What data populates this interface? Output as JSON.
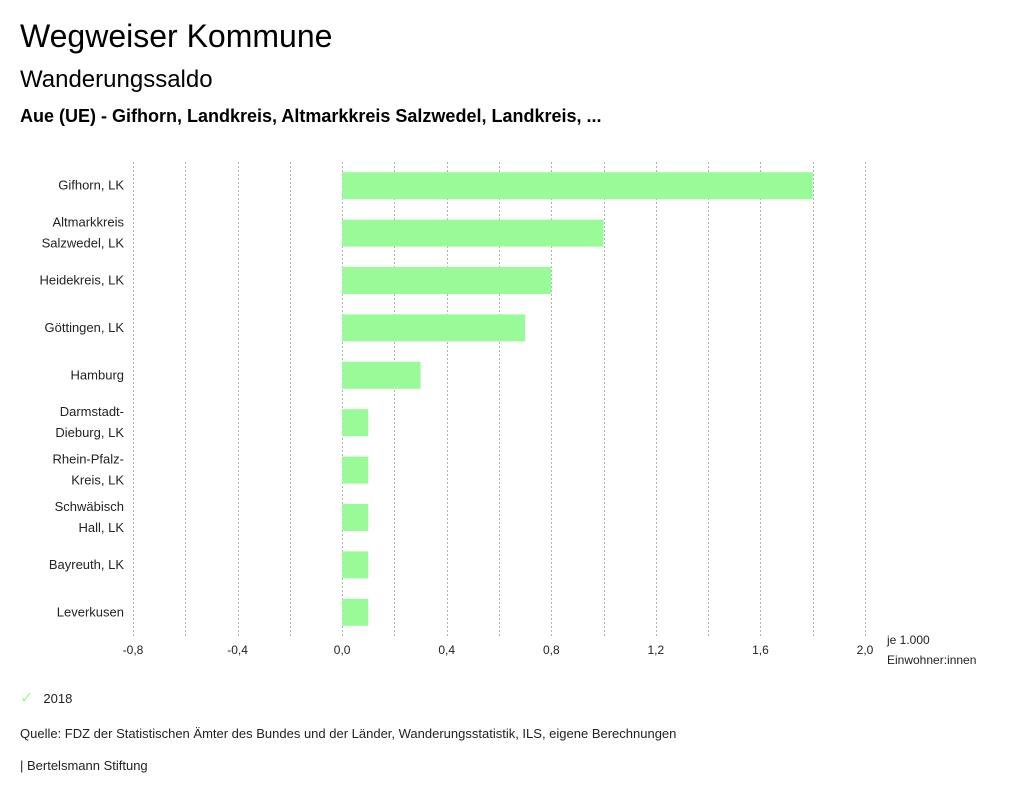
{
  "header": {
    "title": "Wegweiser Kommune",
    "subtitle": "Wanderungssaldo",
    "region": "Aue (UE) - Gifhorn, Landkreis, Altmarkkreis Salzwedel, Landkreis, ..."
  },
  "chart_data": {
    "type": "bar",
    "orientation": "horizontal",
    "categories": [
      [
        "Gifhorn, LK"
      ],
      [
        "Altmarkkreis",
        "Salzwedel, LK"
      ],
      [
        "Heidekreis, LK"
      ],
      [
        "Göttingen, LK"
      ],
      [
        "Hamburg"
      ],
      [
        "Darmstadt-",
        "Dieburg, LK"
      ],
      [
        "Rhein-Pfalz-",
        "Kreis, LK"
      ],
      [
        "Schwäbisch",
        "Hall, LK"
      ],
      [
        "Bayreuth, LK"
      ],
      [
        "Leverkusen"
      ]
    ],
    "series": [
      {
        "name": "2018",
        "color": "#98fb98",
        "values": [
          1.8,
          1.0,
          0.8,
          0.7,
          0.3,
          0.1,
          0.1,
          0.1,
          0.1,
          0.1
        ]
      }
    ],
    "xlim": [
      -0.8,
      2.0
    ],
    "xticks": [
      -0.8,
      -0.4,
      0.0,
      0.4,
      0.8,
      1.2,
      1.6,
      2.0
    ],
    "xtick_labels": [
      "-0,8",
      "-0,4",
      "0,0",
      "0,4",
      "0,8",
      "1,2",
      "1,6",
      "2,0"
    ],
    "grid_minor_step": 0.2,
    "unit_label": [
      "je 1.000",
      "Einwohner:innen"
    ],
    "legend": {
      "entries": [
        "2018"
      ],
      "position": "bottom-left"
    }
  },
  "legend": {
    "label": "2018",
    "icon": "check-icon"
  },
  "footer": {
    "source": "Quelle: FDZ der Statistischen Ämter des Bundes und der Länder, Wanderungsstatistik, ILS, eigene Berechnungen",
    "credit": "| Bertelsmann Stiftung"
  }
}
